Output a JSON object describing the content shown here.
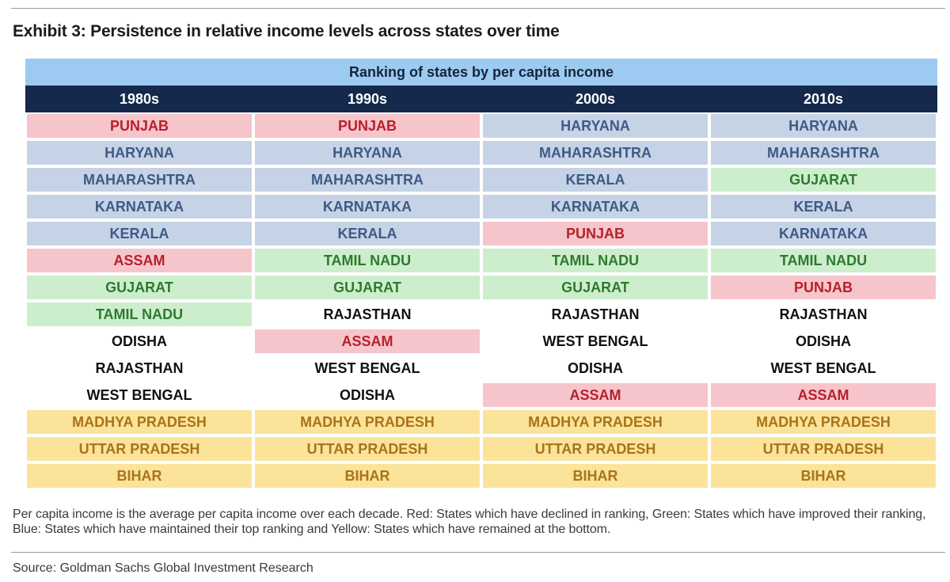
{
  "title": "Exhibit 3: Persistence in relative income levels across states over time",
  "table": {
    "banner": "Ranking of states by per capita income",
    "columns": [
      "1980s",
      "1990s",
      "2000s",
      "2010s"
    ],
    "rows": [
      [
        {
          "text": "PUNJAB",
          "status": "red"
        },
        {
          "text": "PUNJAB",
          "status": "red"
        },
        {
          "text": "HARYANA",
          "status": "blue"
        },
        {
          "text": "HARYANA",
          "status": "blue"
        }
      ],
      [
        {
          "text": "HARYANA",
          "status": "blue"
        },
        {
          "text": "HARYANA",
          "status": "blue"
        },
        {
          "text": "MAHARASHTRA",
          "status": "blue"
        },
        {
          "text": "MAHARASHTRA",
          "status": "blue"
        }
      ],
      [
        {
          "text": "MAHARASHTRA",
          "status": "blue"
        },
        {
          "text": "MAHARASHTRA",
          "status": "blue"
        },
        {
          "text": "KERALA",
          "status": "blue"
        },
        {
          "text": "GUJARAT",
          "status": "green"
        }
      ],
      [
        {
          "text": "KARNATAKA",
          "status": "blue"
        },
        {
          "text": "KARNATAKA",
          "status": "blue"
        },
        {
          "text": "KARNATAKA",
          "status": "blue"
        },
        {
          "text": "KERALA",
          "status": "blue"
        }
      ],
      [
        {
          "text": "KERALA",
          "status": "blue"
        },
        {
          "text": "KERALA",
          "status": "blue"
        },
        {
          "text": "PUNJAB",
          "status": "red"
        },
        {
          "text": "KARNATAKA",
          "status": "blue"
        }
      ],
      [
        {
          "text": "ASSAM",
          "status": "red"
        },
        {
          "text": "TAMIL NADU",
          "status": "green"
        },
        {
          "text": "TAMIL NADU",
          "status": "green"
        },
        {
          "text": "TAMIL NADU",
          "status": "green"
        }
      ],
      [
        {
          "text": "GUJARAT",
          "status": "green"
        },
        {
          "text": "GUJARAT",
          "status": "green"
        },
        {
          "text": "GUJARAT",
          "status": "green"
        },
        {
          "text": "PUNJAB",
          "status": "red"
        }
      ],
      [
        {
          "text": "TAMIL NADU",
          "status": "green"
        },
        {
          "text": "RAJASTHAN",
          "status": "none"
        },
        {
          "text": "RAJASTHAN",
          "status": "none"
        },
        {
          "text": "RAJASTHAN",
          "status": "none"
        }
      ],
      [
        {
          "text": "ODISHA",
          "status": "none"
        },
        {
          "text": "ASSAM",
          "status": "red"
        },
        {
          "text": "WEST BENGAL",
          "status": "none"
        },
        {
          "text": "ODISHA",
          "status": "none"
        }
      ],
      [
        {
          "text": "RAJASTHAN",
          "status": "none"
        },
        {
          "text": "WEST BENGAL",
          "status": "none"
        },
        {
          "text": "ODISHA",
          "status": "none"
        },
        {
          "text": "WEST BENGAL",
          "status": "none"
        }
      ],
      [
        {
          "text": "WEST BENGAL",
          "status": "none"
        },
        {
          "text": "ODISHA",
          "status": "none"
        },
        {
          "text": "ASSAM",
          "status": "red"
        },
        {
          "text": "ASSAM",
          "status": "red"
        }
      ],
      [
        {
          "text": "MADHYA PRADESH",
          "status": "yellow"
        },
        {
          "text": "MADHYA PRADESH",
          "status": "yellow"
        },
        {
          "text": "MADHYA PRADESH",
          "status": "yellow"
        },
        {
          "text": "MADHYA PRADESH",
          "status": "yellow"
        }
      ],
      [
        {
          "text": "UTTAR PRADESH",
          "status": "yellow"
        },
        {
          "text": "UTTAR PRADESH",
          "status": "yellow"
        },
        {
          "text": "UTTAR PRADESH",
          "status": "yellow"
        },
        {
          "text": "UTTAR PRADESH",
          "status": "yellow"
        }
      ],
      [
        {
          "text": "BIHAR",
          "status": "yellow"
        },
        {
          "text": "BIHAR",
          "status": "yellow"
        },
        {
          "text": "BIHAR",
          "status": "yellow"
        },
        {
          "text": "BIHAR",
          "status": "yellow"
        }
      ]
    ]
  },
  "colors": {
    "banner_bg": "#9dcaf0",
    "header_bg": "#14294b",
    "red_bg": "#f6c5cb",
    "red_text": "#b6212b",
    "green_bg": "#cdeecd",
    "green_text": "#2e7a2e",
    "blue_bg": "#c6d3e6",
    "blue_text": "#3e5a85",
    "yellow_bg": "#fbe39a",
    "yellow_text": "#a8741a"
  },
  "note": "Per capita income is the average per capita income over each decade. Red: States which have declined in ranking, Green: States which have improved their ranking, Blue: States which have maintained their top ranking and Yellow: States which have remained at the bottom.",
  "source": "Source: Goldman Sachs Global Investment Research"
}
